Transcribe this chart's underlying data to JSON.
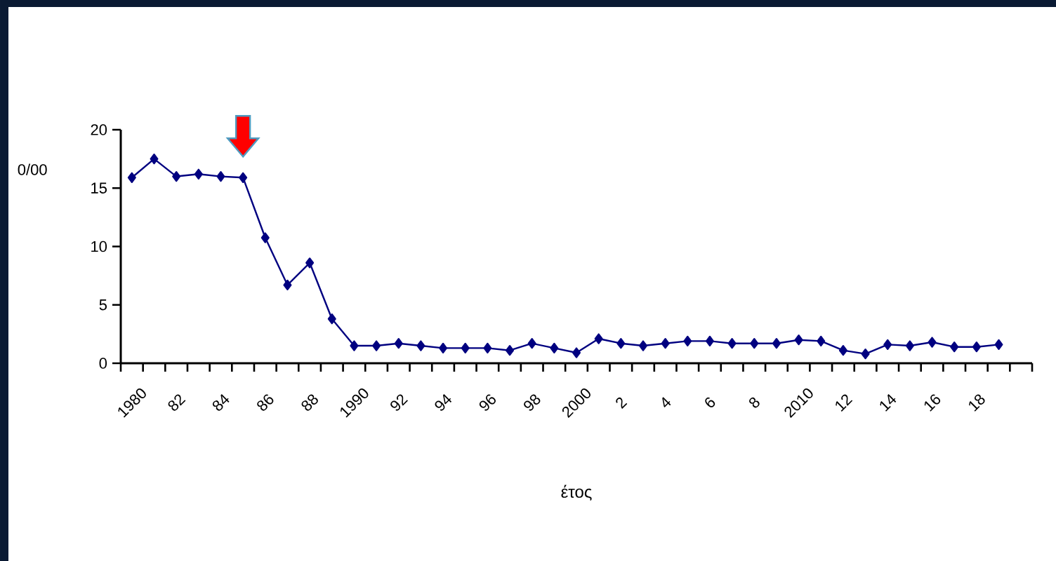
{
  "chart_data": {
    "type": "line",
    "xlabel": "έτος",
    "ylabel": "0/00",
    "categories": [
      "1980",
      null,
      "82",
      null,
      "84",
      null,
      "86",
      null,
      "88",
      null,
      "1990",
      null,
      "92",
      null,
      "94",
      null,
      "96",
      null,
      "98",
      null,
      "2000",
      null,
      "2",
      null,
      "4",
      null,
      "6",
      null,
      "8",
      null,
      "2010",
      null,
      "12",
      null,
      "14",
      null,
      "16",
      null,
      "18",
      null,
      null
    ],
    "series": [
      {
        "color": "#000080",
        "values": [
          15.9,
          17.5,
          16.0,
          16.2,
          16.0,
          15.9,
          10.75,
          6.7,
          8.6,
          3.8,
          1.5,
          1.5,
          1.7,
          1.5,
          1.3,
          1.3,
          1.3,
          1.1,
          1.7,
          1.3,
          0.9,
          2.1,
          1.7,
          1.5,
          1.7,
          1.9,
          1.9,
          1.7,
          1.7,
          1.7,
          2.0,
          1.9,
          1.1,
          0.8,
          1.6,
          1.5,
          1.8,
          1.4,
          1.4,
          1.6,
          null
        ]
      }
    ],
    "ylim": [
      0,
      20
    ],
    "yticks": [
      0,
      5,
      10,
      15,
      20
    ],
    "grid": false,
    "marker": "diamond",
    "line_style": "solid"
  }
}
